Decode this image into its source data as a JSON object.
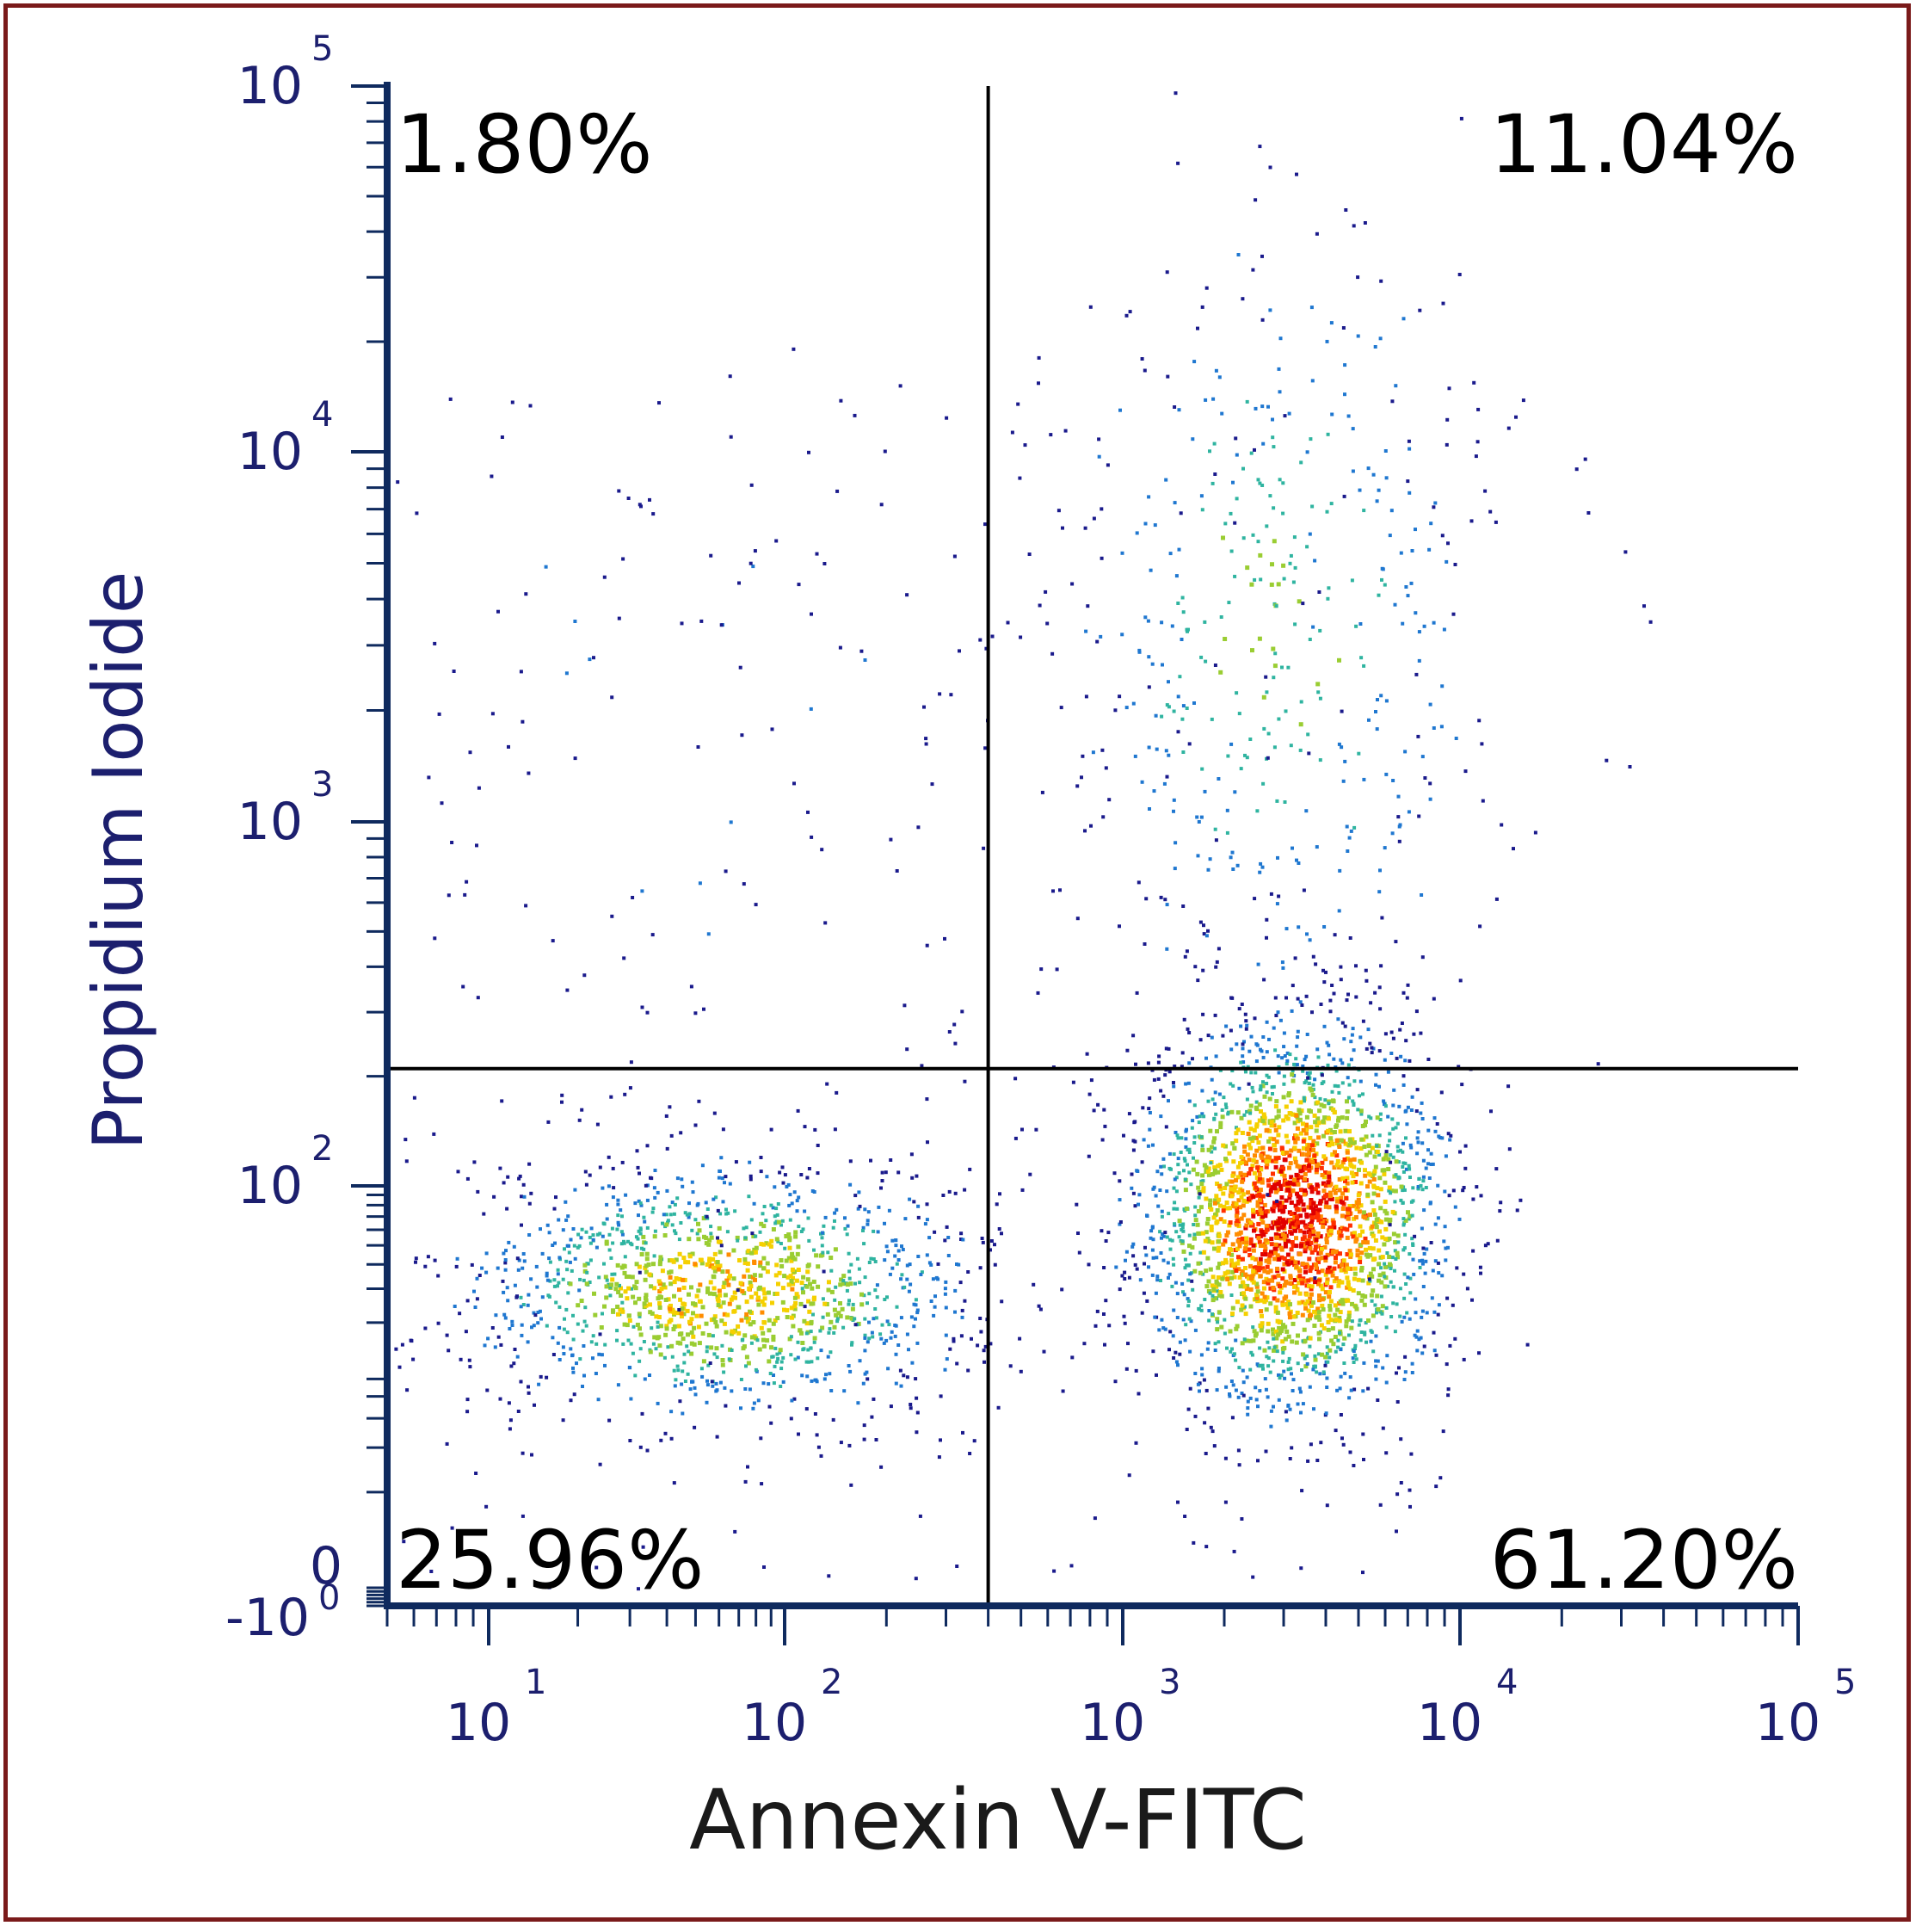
{
  "chart_data": {
    "type": "scatter",
    "title": "",
    "xlabel": "Annexin V-FITC",
    "ylabel": "Propidium Iodide",
    "x_scale": "log",
    "y_scale": "log",
    "xlim": [
      5,
      100000
    ],
    "ylim": [
      -10,
      100000
    ],
    "x_ticks": [
      {
        "base": "10",
        "exp": "1",
        "value": 10
      },
      {
        "base": "10",
        "exp": "2",
        "value": 100
      },
      {
        "base": "10",
        "exp": "3",
        "value": 1000
      },
      {
        "base": "10",
        "exp": "4",
        "value": 10000
      },
      {
        "base": "10",
        "exp": "5",
        "value": 100000
      }
    ],
    "y_ticks": [
      {
        "base": "-10",
        "exp": "0",
        "value": -10
      },
      {
        "base": "0",
        "exp": "",
        "value": 0
      },
      {
        "base": "10",
        "exp": "2",
        "value": 100
      },
      {
        "base": "10",
        "exp": "3",
        "value": 1000
      },
      {
        "base": "10",
        "exp": "4",
        "value": 10000
      },
      {
        "base": "10",
        "exp": "5",
        "value": 100000
      }
    ],
    "gates": {
      "x": 400,
      "y": 210
    },
    "quadrants": {
      "upper_left": "1.80%",
      "upper_right": "11.04%",
      "lower_left": "25.96%",
      "lower_right": "61.20%"
    },
    "populations": [
      {
        "name": "",
        "center": [
          3200,
          70
        ],
        "count": 2600
      },
      {
        "name": "",
        "center": [
          60,
          30
        ],
        "count": 1400
      },
      {
        "name": "",
        "center": [
          2800,
          3500
        ],
        "count": 450
      },
      {
        "name": "",
        "center": [
          60,
          2000
        ],
        "count": 70
      }
    ],
    "colormap": [
      "#1a1a8c",
      "#1f77d0",
      "#2fb4a0",
      "#9acd32",
      "#f5d000",
      "#ff8c00",
      "#ff3000",
      "#e00000"
    ],
    "grid": false,
    "legend": "none"
  },
  "colors": {
    "frame": "#7a1a1a",
    "axis": "#0f2a5e",
    "tick_text": "#1c1f6e"
  }
}
